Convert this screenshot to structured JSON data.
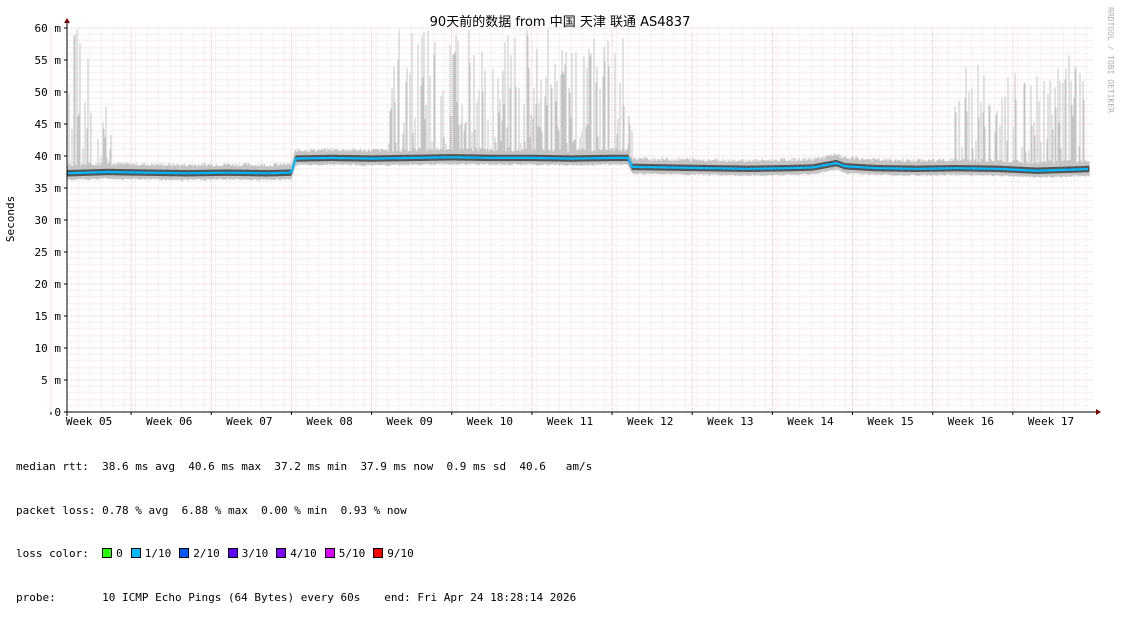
{
  "chart_data": {
    "type": "line",
    "title": "90天前的数据 from  中国 天津 联通 AS4837",
    "ylabel": "Seconds",
    "side_label": "RRDTOOL / TOBI OETIKER",
    "ylim": [
      0,
      60
    ],
    "y_ticks": [
      "0",
      "5 m",
      "10 m",
      "15 m",
      "20 m",
      "25 m",
      "30 m",
      "35 m",
      "40 m",
      "45 m",
      "50 m",
      "55 m",
      "60 m"
    ],
    "y_tick_values": [
      0,
      5,
      10,
      15,
      20,
      25,
      30,
      35,
      40,
      45,
      50,
      55,
      60
    ],
    "week_labels": [
      "Week 05",
      "Week 06",
      "Week 07",
      "Week 08",
      "Week 09",
      "Week 10",
      "Week 11",
      "Week 12",
      "Week 13",
      "Week 14",
      "Week 15",
      "Week 16",
      "Week 17"
    ],
    "x_unit": "week",
    "xlim": [
      4.7,
      17.5
    ],
    "grid": true,
    "median_series": {
      "name": "median rtt",
      "x": [
        4.7,
        5.2,
        5.7,
        6.2,
        6.7,
        7.2,
        7.5,
        7.55,
        8.0,
        8.5,
        9.0,
        9.5,
        10.0,
        10.5,
        11.0,
        11.5,
        11.7,
        11.75,
        12.2,
        12.7,
        13.2,
        13.7,
        14.0,
        14.3,
        14.4,
        14.8,
        15.3,
        15.8,
        16.3,
        16.8,
        17.3,
        17.5
      ],
      "values": [
        37.3,
        37.5,
        37.4,
        37.3,
        37.4,
        37.3,
        37.4,
        39.6,
        39.7,
        39.6,
        39.7,
        39.8,
        39.7,
        39.7,
        39.6,
        39.7,
        39.7,
        38.3,
        38.2,
        38.1,
        38.0,
        38.1,
        38.2,
        38.9,
        38.4,
        38.1,
        38.0,
        38.1,
        38.0,
        37.7,
        37.9,
        38.0
      ]
    },
    "spike_regions": [
      {
        "from": 4.7,
        "to": 5.25,
        "max": 60
      },
      {
        "from": 8.7,
        "to": 11.75,
        "max": 60
      },
      {
        "from": 15.75,
        "to": 17.4,
        "max": 56
      }
    ]
  },
  "stats": {
    "median_rtt": {
      "label": "median rtt:",
      "avg": "38.6 ms avg",
      "max": "40.6 ms max",
      "min": "37.2 ms min",
      "now": "37.9 ms now",
      "sd": "0.9 ms sd",
      "am": "40.6   am/s"
    },
    "packet_loss": {
      "label": "packet loss:",
      "avg": "0.78 % avg",
      "max": "6.88 % max",
      "min": "0.00 % min",
      "now": "0.93 % now"
    },
    "loss_color": {
      "label": "loss color:",
      "items": [
        {
          "label": "0",
          "color": "#26ff00"
        },
        {
          "label": "1/10",
          "color": "#00b8ff"
        },
        {
          "label": "2/10",
          "color": "#0059ff"
        },
        {
          "label": "3/10",
          "color": "#5e00ff"
        },
        {
          "label": "4/10",
          "color": "#7e00ff"
        },
        {
          "label": "5/10",
          "color": "#dd00ff"
        },
        {
          "label": "9/10",
          "color": "#ff0000"
        }
      ]
    },
    "probe": {
      "label": "probe:",
      "text": "10 ICMP Echo Pings (64 Bytes) every 60s"
    },
    "end": "end: Fri Apr 24 18:28:14 2026"
  },
  "colors": {
    "median": "#00b8ff",
    "smoke": "#c4c4c4",
    "grid_minor": "#f0d0d0",
    "grid_major": "#e8a0a0",
    "axis": "#000000",
    "arrow": "#800000"
  }
}
